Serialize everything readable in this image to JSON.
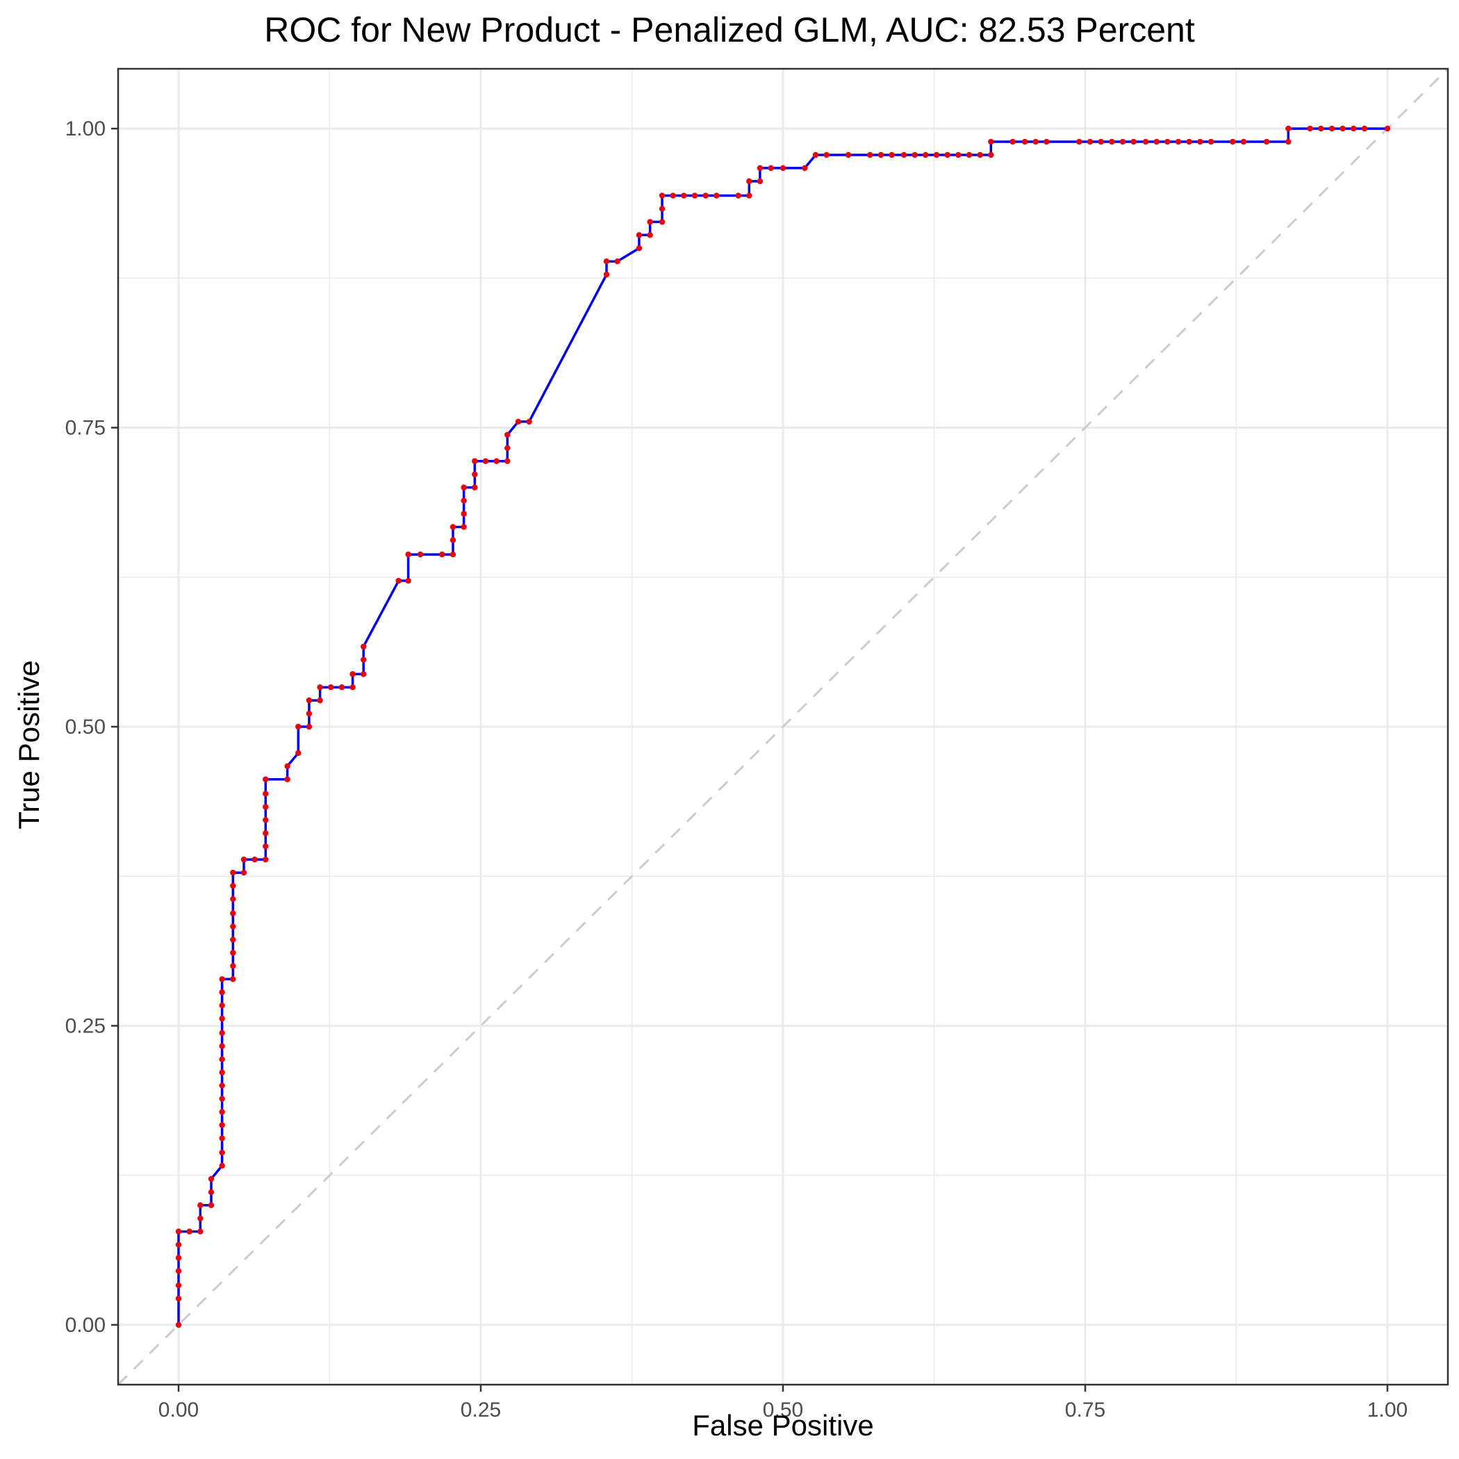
{
  "chart_data": {
    "type": "line",
    "title": "ROC for New Product - Penalized GLM, AUC: 82.53 Percent",
    "xlabel": "False Positive",
    "ylabel": "True Positive",
    "xlim": [
      -0.05,
      1.05
    ],
    "ylim": [
      -0.05,
      1.05
    ],
    "x_ticks": [
      0,
      0.25,
      0.5,
      0.75,
      1
    ],
    "x_tick_labels": [
      "0.00",
      "0.25",
      "0.50",
      "0.75",
      "1.00"
    ],
    "y_ticks": [
      0,
      0.25,
      0.5,
      0.75,
      1
    ],
    "y_tick_labels": [
      "0.00",
      "0.25",
      "0.50",
      "0.75",
      "1.00"
    ],
    "grid": true,
    "legend": "none",
    "colors": {
      "line": "#0000ee",
      "points": "#e8000b",
      "reference": "#cccccc"
    },
    "reference_line": {
      "style": "dashed",
      "from": [
        0,
        0
      ],
      "to": [
        1,
        1
      ]
    },
    "series": [
      {
        "points": [
          [
            0.0,
            0.0
          ],
          [
            0.0,
            0.022
          ],
          [
            0.0,
            0.033
          ],
          [
            0.0,
            0.045
          ],
          [
            0.0,
            0.056
          ],
          [
            0.0,
            0.067
          ],
          [
            0.0,
            0.078
          ],
          [
            0.009,
            0.078
          ],
          [
            0.018,
            0.078
          ],
          [
            0.018,
            0.089
          ],
          [
            0.018,
            0.1
          ],
          [
            0.027,
            0.1
          ],
          [
            0.027,
            0.111
          ],
          [
            0.027,
            0.122
          ],
          [
            0.036,
            0.133
          ],
          [
            0.036,
            0.144
          ],
          [
            0.036,
            0.156
          ],
          [
            0.036,
            0.167
          ],
          [
            0.036,
            0.178
          ],
          [
            0.036,
            0.189
          ],
          [
            0.036,
            0.2
          ],
          [
            0.036,
            0.211
          ],
          [
            0.036,
            0.222
          ],
          [
            0.036,
            0.233
          ],
          [
            0.036,
            0.244
          ],
          [
            0.036,
            0.256
          ],
          [
            0.036,
            0.267
          ],
          [
            0.036,
            0.278
          ],
          [
            0.036,
            0.289
          ],
          [
            0.045,
            0.289
          ],
          [
            0.045,
            0.3
          ],
          [
            0.045,
            0.311
          ],
          [
            0.045,
            0.322
          ],
          [
            0.045,
            0.333
          ],
          [
            0.045,
            0.344
          ],
          [
            0.045,
            0.356
          ],
          [
            0.045,
            0.367
          ],
          [
            0.045,
            0.378
          ],
          [
            0.054,
            0.378
          ],
          [
            0.054,
            0.389
          ],
          [
            0.063,
            0.389
          ],
          [
            0.072,
            0.389
          ],
          [
            0.072,
            0.4
          ],
          [
            0.072,
            0.411
          ],
          [
            0.072,
            0.422
          ],
          [
            0.072,
            0.433
          ],
          [
            0.072,
            0.444
          ],
          [
            0.072,
            0.456
          ],
          [
            0.09,
            0.456
          ],
          [
            0.09,
            0.467
          ],
          [
            0.099,
            0.478
          ],
          [
            0.099,
            0.5
          ],
          [
            0.108,
            0.5
          ],
          [
            0.108,
            0.511
          ],
          [
            0.108,
            0.522
          ],
          [
            0.117,
            0.522
          ],
          [
            0.117,
            0.533
          ],
          [
            0.126,
            0.533
          ],
          [
            0.135,
            0.533
          ],
          [
            0.144,
            0.533
          ],
          [
            0.144,
            0.544
          ],
          [
            0.153,
            0.544
          ],
          [
            0.153,
            0.556
          ],
          [
            0.153,
            0.567
          ],
          [
            0.182,
            0.622
          ],
          [
            0.19,
            0.622
          ],
          [
            0.19,
            0.644
          ],
          [
            0.2,
            0.644
          ],
          [
            0.218,
            0.644
          ],
          [
            0.227,
            0.644
          ],
          [
            0.227,
            0.656
          ],
          [
            0.227,
            0.667
          ],
          [
            0.236,
            0.667
          ],
          [
            0.236,
            0.678
          ],
          [
            0.236,
            0.689
          ],
          [
            0.236,
            0.7
          ],
          [
            0.245,
            0.7
          ],
          [
            0.245,
            0.711
          ],
          [
            0.245,
            0.722
          ],
          [
            0.254,
            0.722
          ],
          [
            0.263,
            0.722
          ],
          [
            0.272,
            0.722
          ],
          [
            0.272,
            0.733
          ],
          [
            0.272,
            0.744
          ],
          [
            0.281,
            0.755
          ],
          [
            0.29,
            0.755
          ],
          [
            0.354,
            0.878
          ],
          [
            0.354,
            0.889
          ],
          [
            0.363,
            0.889
          ],
          [
            0.381,
            0.9
          ],
          [
            0.381,
            0.911
          ],
          [
            0.39,
            0.911
          ],
          [
            0.39,
            0.922
          ],
          [
            0.4,
            0.922
          ],
          [
            0.4,
            0.933
          ],
          [
            0.4,
            0.944
          ],
          [
            0.409,
            0.944
          ],
          [
            0.418,
            0.944
          ],
          [
            0.427,
            0.944
          ],
          [
            0.436,
            0.944
          ],
          [
            0.445,
            0.944
          ],
          [
            0.463,
            0.944
          ],
          [
            0.472,
            0.944
          ],
          [
            0.472,
            0.956
          ],
          [
            0.481,
            0.956
          ],
          [
            0.481,
            0.967
          ],
          [
            0.49,
            0.967
          ],
          [
            0.5,
            0.967
          ],
          [
            0.518,
            0.967
          ],
          [
            0.527,
            0.978
          ],
          [
            0.536,
            0.978
          ],
          [
            0.554,
            0.978
          ],
          [
            0.572,
            0.978
          ],
          [
            0.581,
            0.978
          ],
          [
            0.59,
            0.978
          ],
          [
            0.6,
            0.978
          ],
          [
            0.609,
            0.978
          ],
          [
            0.618,
            0.978
          ],
          [
            0.627,
            0.978
          ],
          [
            0.636,
            0.978
          ],
          [
            0.645,
            0.978
          ],
          [
            0.654,
            0.978
          ],
          [
            0.663,
            0.978
          ],
          [
            0.672,
            0.978
          ],
          [
            0.672,
            0.989
          ],
          [
            0.69,
            0.989
          ],
          [
            0.7,
            0.989
          ],
          [
            0.709,
            0.989
          ],
          [
            0.718,
            0.989
          ],
          [
            0.745,
            0.989
          ],
          [
            0.754,
            0.989
          ],
          [
            0.763,
            0.989
          ],
          [
            0.772,
            0.989
          ],
          [
            0.781,
            0.989
          ],
          [
            0.79,
            0.989
          ],
          [
            0.8,
            0.989
          ],
          [
            0.809,
            0.989
          ],
          [
            0.818,
            0.989
          ],
          [
            0.827,
            0.989
          ],
          [
            0.836,
            0.989
          ],
          [
            0.845,
            0.989
          ],
          [
            0.854,
            0.989
          ],
          [
            0.872,
            0.989
          ],
          [
            0.881,
            0.989
          ],
          [
            0.9,
            0.989
          ],
          [
            0.918,
            0.989
          ],
          [
            0.918,
            1.0
          ],
          [
            0.936,
            1.0
          ],
          [
            0.945,
            1.0
          ],
          [
            0.954,
            1.0
          ],
          [
            0.963,
            1.0
          ],
          [
            0.972,
            1.0
          ],
          [
            0.981,
            1.0
          ],
          [
            1.0,
            1.0
          ]
        ]
      }
    ]
  }
}
